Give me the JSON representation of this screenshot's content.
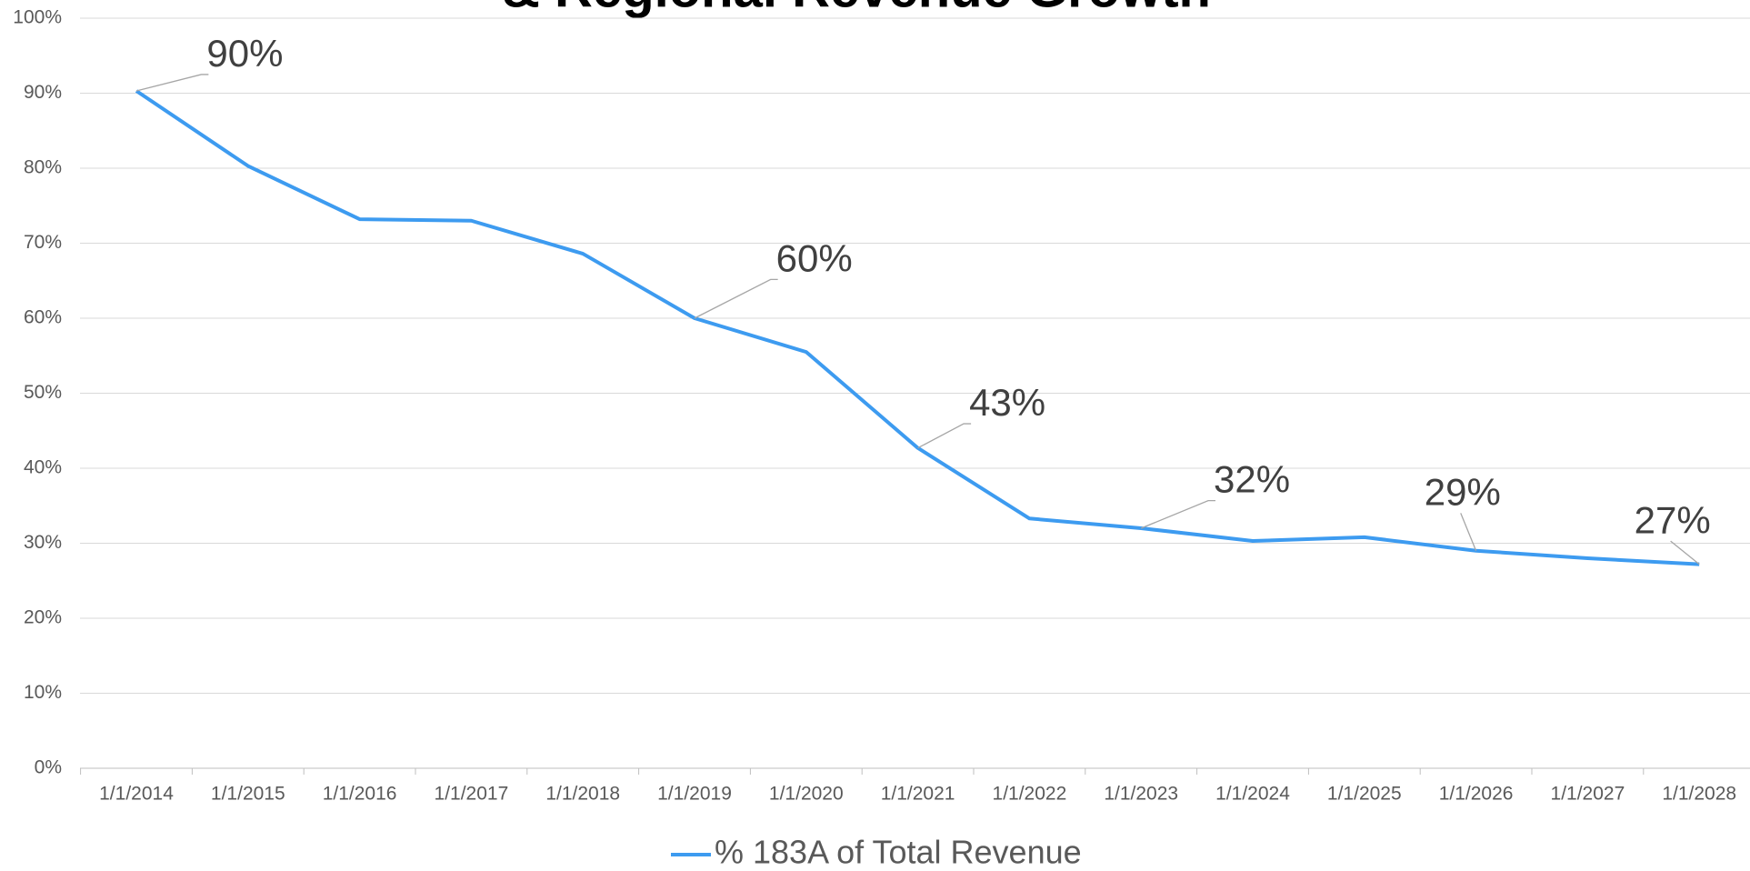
{
  "chart_data": {
    "type": "line",
    "title": "& Regional Revenue Growth",
    "categories": [
      "1/1/2014",
      "1/1/2015",
      "1/1/2016",
      "1/1/2017",
      "1/1/2018",
      "1/1/2019",
      "1/1/2020",
      "1/1/2021",
      "1/1/2022",
      "1/1/2023",
      "1/1/2024",
      "1/1/2025",
      "1/1/2026",
      "1/1/2027",
      "1/1/2028"
    ],
    "series": [
      {
        "name": "% 183A of Total Revenue",
        "color": "#3d9bf0",
        "values": [
          90.3,
          80.3,
          73.2,
          73.0,
          68.6,
          60,
          55.5,
          42.7,
          33.3,
          32,
          30.3,
          30.8,
          29,
          28,
          27.2
        ],
        "value_labels": [
          "90%",
          null,
          null,
          null,
          null,
          "60%",
          null,
          "43%",
          null,
          "32%",
          null,
          null,
          "29%",
          null,
          "27%"
        ]
      }
    ],
    "ylim": [
      0,
      100
    ],
    "yticks": [
      {
        "value": 0,
        "label": "0%"
      },
      {
        "value": 10,
        "label": "10%"
      },
      {
        "value": 20,
        "label": "20%"
      },
      {
        "value": 30,
        "label": "30%"
      },
      {
        "value": 40,
        "label": "40%"
      },
      {
        "value": 50,
        "label": "50%"
      },
      {
        "value": 60,
        "label": "60%"
      },
      {
        "value": 70,
        "label": "70%"
      },
      {
        "value": 80,
        "label": "80%"
      },
      {
        "value": 90,
        "label": "90%"
      },
      {
        "value": 100,
        "label": "100%"
      }
    ],
    "grid": true,
    "legend": "bottom"
  }
}
